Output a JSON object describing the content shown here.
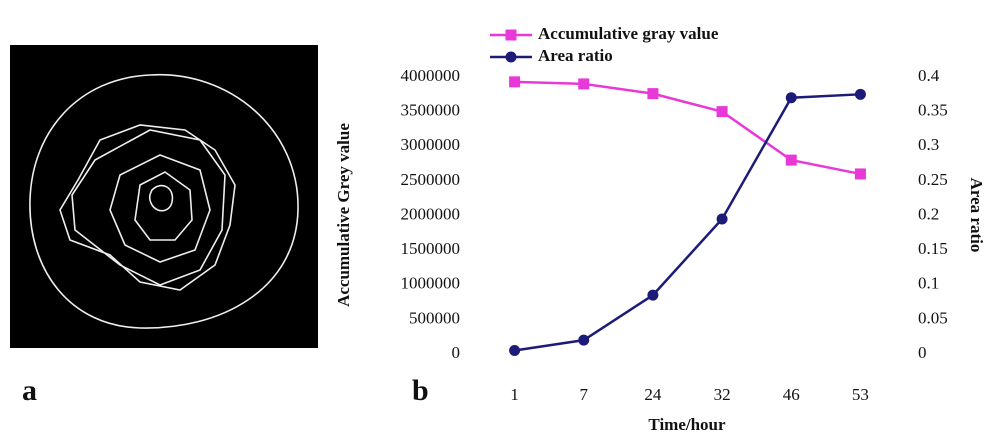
{
  "panels": {
    "a": "a",
    "b": "b"
  },
  "chart_data": {
    "type": "line",
    "categories": [
      "1",
      "7",
      "24",
      "32",
      "46",
      "53"
    ],
    "x_label": "Time/hour",
    "y_label": "Accumulative Grey value",
    "y2_label": "Area ratio",
    "series": [
      {
        "name": "Accumulative gray value",
        "color": "#e838d8",
        "marker": "square",
        "values": [
          3930000,
          3900000,
          3760000,
          3500000,
          2800000,
          2600000
        ]
      },
      {
        "name": "Area ratio",
        "color": "#1c1c78",
        "marker": "circle",
        "axis": "y2",
        "values": [
          0.005,
          0.02,
          0.085,
          0.195,
          0.37,
          0.375
        ]
      }
    ],
    "ylim": [
      0,
      4000000
    ],
    "yticks": [
      0,
      500000,
      1000000,
      1500000,
      2000000,
      2500000,
      3000000,
      3500000,
      4000000
    ],
    "y2lim": [
      0,
      0.4
    ],
    "y2ticks": [
      0,
      0.05,
      0.1,
      0.15,
      0.2,
      0.25,
      0.3,
      0.35,
      0.4
    ],
    "legend": "top"
  }
}
